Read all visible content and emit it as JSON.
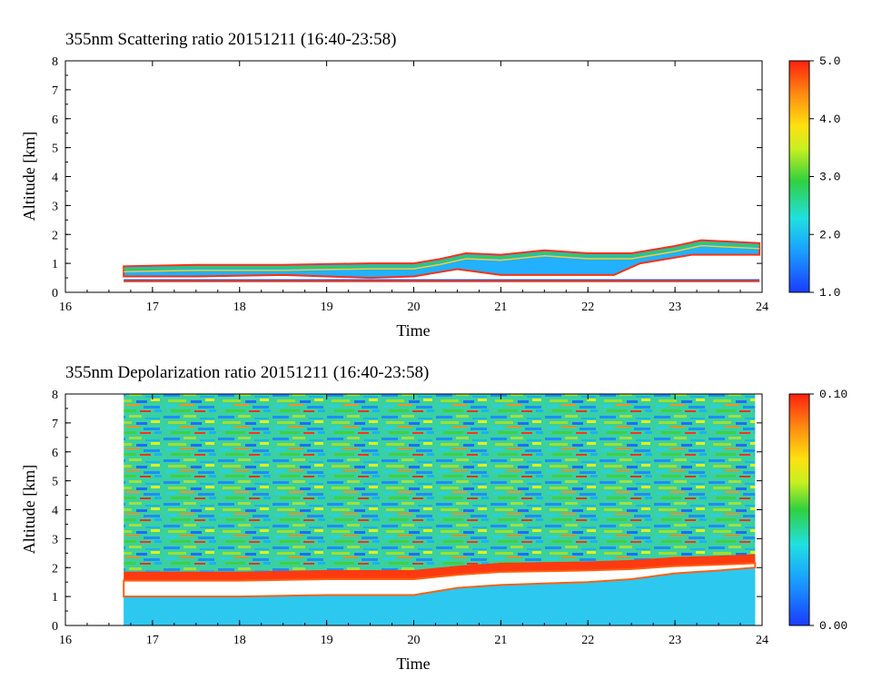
{
  "chart_data": [
    {
      "type": "heatmap",
      "title": "355nm Scattering ratio  20151211 (16:40-23:58)",
      "xlabel": "Time",
      "ylabel": "Altitude [km]",
      "xlim": [
        16,
        24
      ],
      "ylim": [
        0,
        8
      ],
      "x_ticks": [
        "16",
        "17",
        "18",
        "19",
        "20",
        "21",
        "22",
        "23",
        "24"
      ],
      "y_ticks": [
        "0",
        "1",
        "2",
        "3",
        "4",
        "5",
        "6",
        "7",
        "8"
      ],
      "data_time_range": [
        16.67,
        23.97
      ],
      "colorbar": {
        "min": 1.0,
        "max": 5.0,
        "labels": [
          "1.0",
          "2.0",
          "3.0",
          "4.0",
          "5.0"
        ]
      },
      "layers": {
        "surface_band_km": [
          0.35,
          0.45
        ],
        "cloud_base_time": [
          16.67,
          17.5,
          18.5,
          19.5,
          20.0,
          20.3,
          20.5,
          21.0,
          21.8,
          22.3,
          22.6,
          23.2,
          23.97
        ],
        "cloud_base_km": [
          0.55,
          0.55,
          0.6,
          0.5,
          0.55,
          0.7,
          0.8,
          0.6,
          0.6,
          0.6,
          1.0,
          1.3,
          1.3
        ],
        "cloud_top_time": [
          16.67,
          17.5,
          18.5,
          19.5,
          20.0,
          20.3,
          20.6,
          21.0,
          21.5,
          22.0,
          22.5,
          23.0,
          23.3,
          23.97
        ],
        "cloud_top_km": [
          0.9,
          0.95,
          0.95,
          1.0,
          1.0,
          1.15,
          1.35,
          1.3,
          1.45,
          1.35,
          1.35,
          1.6,
          1.8,
          1.7
        ]
      }
    },
    {
      "type": "heatmap",
      "title": "355nm Depolarization ratio  20151211 (16:40-23:58)",
      "xlabel": "Time",
      "ylabel": "Altitude [km]",
      "xlim": [
        16,
        24
      ],
      "ylim": [
        0,
        8
      ],
      "x_ticks": [
        "16",
        "17",
        "18",
        "19",
        "20",
        "21",
        "22",
        "23",
        "24"
      ],
      "y_ticks": [
        "0",
        "1",
        "2",
        "3",
        "4",
        "5",
        "6",
        "7",
        "8"
      ],
      "data_time_range": [
        16.67,
        23.92
      ],
      "colorbar": {
        "min": 0.0,
        "max": 0.1,
        "labels": [
          "0.00",
          "0.10"
        ]
      },
      "layers": {
        "boundary_time": [
          16.67,
          18.0,
          19.0,
          20.0,
          20.5,
          21.0,
          22.0,
          22.5,
          23.0,
          23.5,
          23.92
        ],
        "white_gap_bottom_km": [
          1.0,
          1.0,
          1.05,
          1.05,
          1.3,
          1.4,
          1.5,
          1.6,
          1.8,
          1.9,
          2.0
        ],
        "white_gap_top_km": [
          1.55,
          1.55,
          1.6,
          1.6,
          1.75,
          1.85,
          1.9,
          1.95,
          2.05,
          2.1,
          2.15
        ]
      }
    }
  ]
}
